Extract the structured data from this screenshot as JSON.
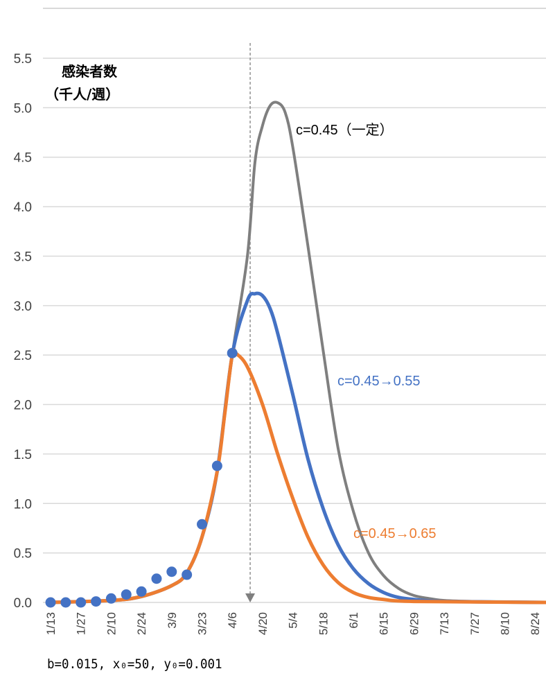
{
  "chart_data": {
    "type": "line",
    "ylabel_lines": [
      "感染者数",
      "（千人/週）"
    ],
    "ylim": [
      0,
      5.5
    ],
    "y_ticks": [
      "0.0",
      "0.5",
      "1.0",
      "1.5",
      "2.0",
      "2.5",
      "3.0",
      "3.5",
      "4.0",
      "4.5",
      "5.0",
      "5.5"
    ],
    "x_tick_labels": [
      "1/13",
      "1/27",
      "2/10",
      "2/24",
      "3/9",
      "3/23",
      "4/6",
      "4/20",
      "5/4",
      "5/18",
      "6/1",
      "6/15",
      "6/29",
      "7/13",
      "7/27",
      "8/10",
      "8/24"
    ],
    "x_categories": [
      "1/13",
      "1/20",
      "1/27",
      "2/3",
      "2/10",
      "2/17",
      "2/24",
      "3/2",
      "3/9",
      "3/16",
      "3/23",
      "3/30",
      "4/6",
      "4/13",
      "4/20",
      "4/27",
      "5/4",
      "5/11",
      "5/18",
      "5/25",
      "6/1",
      "6/8",
      "6/15",
      "6/22",
      "6/29",
      "7/6",
      "7/13",
      "7/20",
      "7/27",
      "8/3",
      "8/10",
      "8/17",
      "8/24",
      "8/31"
    ],
    "grid": "horizontal",
    "marker_line_x": "4/13",
    "observed": {
      "type": "scatter",
      "color": "#4472C4",
      "points": [
        {
          "x": 0,
          "y": 0.0
        },
        {
          "x": 1,
          "y": 0.0
        },
        {
          "x": 2,
          "y": 0.0
        },
        {
          "x": 3,
          "y": 0.01
        },
        {
          "x": 4,
          "y": 0.04
        },
        {
          "x": 5,
          "y": 0.08
        },
        {
          "x": 6,
          "y": 0.11
        },
        {
          "x": 7,
          "y": 0.24
        },
        {
          "x": 8,
          "y": 0.31
        },
        {
          "x": 9,
          "y": 0.28
        },
        {
          "x": 10,
          "y": 0.79
        },
        {
          "x": 11,
          "y": 1.38
        },
        {
          "x": 12,
          "y": 2.52
        }
      ]
    },
    "series": [
      {
        "annotation": "c=0.45（一定）",
        "color": "#7F7F7F",
        "values": [
          [
            0,
            0.0
          ],
          [
            4,
            0.02
          ],
          [
            6,
            0.06
          ],
          [
            8,
            0.17
          ],
          [
            9,
            0.3
          ],
          [
            10,
            0.66
          ],
          [
            11,
            1.32
          ],
          [
            12,
            2.5
          ],
          [
            13,
            3.5
          ],
          [
            13.5,
            4.45
          ],
          [
            14,
            4.82
          ],
          [
            14.5,
            5.02
          ],
          [
            15,
            5.05
          ],
          [
            15.5,
            4.95
          ],
          [
            16,
            4.6
          ],
          [
            17,
            3.6
          ],
          [
            18,
            2.55
          ],
          [
            19,
            1.55
          ],
          [
            20,
            0.92
          ],
          [
            21,
            0.5
          ],
          [
            22,
            0.27
          ],
          [
            23,
            0.14
          ],
          [
            24,
            0.07
          ],
          [
            25,
            0.04
          ],
          [
            26,
            0.02
          ],
          [
            28,
            0.01
          ],
          [
            33,
            0.0
          ]
        ]
      },
      {
        "annotation": "c=0.45→0.55",
        "color": "#4472C4",
        "values": [
          [
            0,
            0.0
          ],
          [
            4,
            0.02
          ],
          [
            6,
            0.06
          ],
          [
            8,
            0.17
          ],
          [
            9,
            0.3
          ],
          [
            10,
            0.66
          ],
          [
            11,
            1.32
          ],
          [
            12,
            2.5
          ],
          [
            13,
            3.05
          ],
          [
            13.5,
            3.12
          ],
          [
            14,
            3.1
          ],
          [
            14.5,
            2.97
          ],
          [
            15,
            2.72
          ],
          [
            16,
            2.1
          ],
          [
            17,
            1.45
          ],
          [
            18,
            0.95
          ],
          [
            19,
            0.58
          ],
          [
            20,
            0.34
          ],
          [
            21,
            0.19
          ],
          [
            22,
            0.1
          ],
          [
            23,
            0.05
          ],
          [
            24,
            0.03
          ],
          [
            26,
            0.01
          ],
          [
            33,
            0.0
          ]
        ]
      },
      {
        "annotation": "c=0.45→0.65",
        "color": "#ED7D31",
        "values": [
          [
            0,
            0.0
          ],
          [
            4,
            0.02
          ],
          [
            6,
            0.06
          ],
          [
            8,
            0.17
          ],
          [
            9,
            0.3
          ],
          [
            10,
            0.66
          ],
          [
            11,
            1.32
          ],
          [
            11.5,
            1.9
          ],
          [
            12,
            2.5
          ],
          [
            12.3,
            2.51
          ],
          [
            13,
            2.38
          ],
          [
            14,
            2.0
          ],
          [
            15,
            1.5
          ],
          [
            16,
            1.05
          ],
          [
            17,
            0.66
          ],
          [
            18,
            0.38
          ],
          [
            19,
            0.2
          ],
          [
            20,
            0.1
          ],
          [
            21,
            0.05
          ],
          [
            22,
            0.03
          ],
          [
            24,
            0.01
          ],
          [
            33,
            0.0
          ]
        ]
      }
    ]
  },
  "footnote": "b=0.015, x₀=50, y₀=0.001"
}
